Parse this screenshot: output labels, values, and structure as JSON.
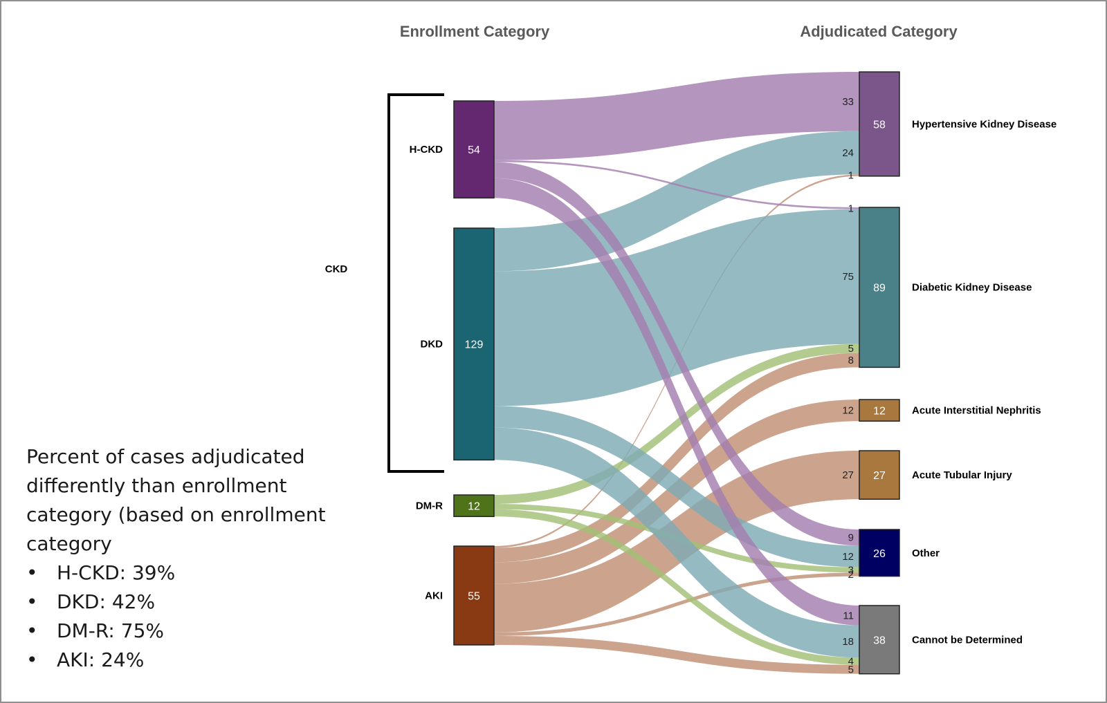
{
  "chart_data": {
    "type": "sankey",
    "titles": {
      "left": "Enrollment Category",
      "right": "Adjudicated Category"
    },
    "group_label": "CKD",
    "sources": [
      {
        "id": "hckd",
        "label": "H-CKD",
        "value": 54,
        "color": "#632870"
      },
      {
        "id": "dkd",
        "label": "DKD",
        "value": 129,
        "color": "#1b6572"
      },
      {
        "id": "dmr",
        "label": "DM-R",
        "value": 12,
        "color": "#4f7319"
      },
      {
        "id": "aki",
        "label": "AKI",
        "value": 55,
        "color": "#8a3a12"
      }
    ],
    "targets": [
      {
        "id": "hkd",
        "label": "Hypertensive Kidney Disease",
        "value": 58,
        "color": "#7b568b"
      },
      {
        "id": "dkdt",
        "label": "Diabetic Kidney Disease",
        "value": 89,
        "color": "#4a8087"
      },
      {
        "id": "ain",
        "label": "Acute Interstitial Nephritis",
        "value": 12,
        "color": "#a8783f"
      },
      {
        "id": "ati",
        "label": "Acute Tubular Injury",
        "value": 27,
        "color": "#a8783f"
      },
      {
        "id": "oth",
        "label": "Other",
        "value": 26,
        "color": "#000062"
      },
      {
        "id": "cbd",
        "label": "Cannot be Determined",
        "value": 38,
        "color": "#7a7a7a"
      }
    ],
    "flows": [
      {
        "source": "hckd",
        "target": "hkd",
        "value": 33,
        "label": "33"
      },
      {
        "source": "dkd",
        "target": "hkd",
        "value": 24,
        "label": "24"
      },
      {
        "source": "aki",
        "target": "hkd",
        "value": 1,
        "label": "1"
      },
      {
        "source": "hckd",
        "target": "dkdt",
        "value": 1,
        "label": "1"
      },
      {
        "source": "dkd",
        "target": "dkdt",
        "value": 75,
        "label": "75"
      },
      {
        "source": "dmr",
        "target": "dkdt",
        "value": 5,
        "label": "5"
      },
      {
        "source": "aki",
        "target": "dkdt",
        "value": 8,
        "label": "8"
      },
      {
        "source": "aki",
        "target": "ain",
        "value": 12,
        "label": "12"
      },
      {
        "source": "aki",
        "target": "ati",
        "value": 27,
        "label": "27"
      },
      {
        "source": "hckd",
        "target": "oth",
        "value": 9,
        "label": "9"
      },
      {
        "source": "dkd",
        "target": "oth",
        "value": 12,
        "label": "12"
      },
      {
        "source": "dmr",
        "target": "oth",
        "value": 3,
        "label": "3"
      },
      {
        "source": "aki",
        "target": "oth",
        "value": 2,
        "label": "2"
      },
      {
        "source": "hckd",
        "target": "cbd",
        "value": 11,
        "label": "11"
      },
      {
        "source": "dkd",
        "target": "cbd",
        "value": 18,
        "label": "18"
      },
      {
        "source": "dmr",
        "target": "cbd",
        "value": 4,
        "label": "4"
      },
      {
        "source": "aki",
        "target": "cbd",
        "value": 5,
        "label": "5"
      }
    ]
  },
  "notes": {
    "intro": "Percent of cases adjudicated differently than enrollment category (based on enrollment category",
    "items": [
      "H-CKD:  39%",
      "DKD:  42%",
      "DM-R:  75%",
      "AKI:  24%"
    ]
  }
}
